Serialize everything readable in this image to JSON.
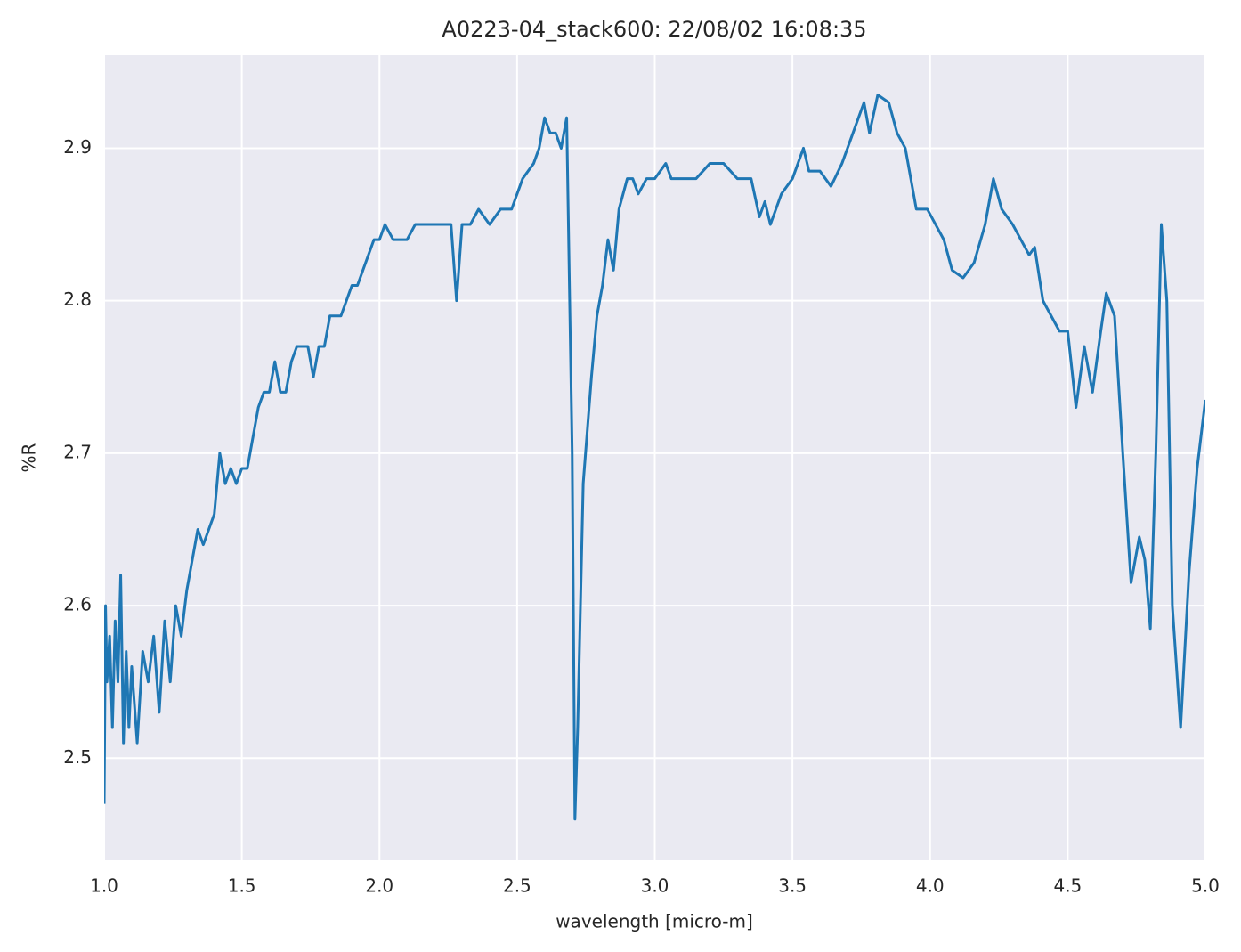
{
  "chart_data": {
    "type": "line",
    "title": "A0223-04_stack600:  22/08/02 16:08:35",
    "x_label": "wavelength [micro-m]",
    "y_label": "%R",
    "color": "#1f77b4",
    "grid": true,
    "xlim": [
      1.0,
      5.0
    ],
    "ylim": [
      2.433,
      2.961
    ],
    "xticks": [
      {
        "value": 1.0,
        "label": "1.0"
      },
      {
        "value": 1.5,
        "label": "1.5"
      },
      {
        "value": 2.0,
        "label": "2.0"
      },
      {
        "value": 2.5,
        "label": "2.5"
      },
      {
        "value": 3.0,
        "label": "3.0"
      },
      {
        "value": 3.5,
        "label": "3.5"
      },
      {
        "value": 4.0,
        "label": "4.0"
      },
      {
        "value": 4.5,
        "label": "4.5"
      },
      {
        "value": 5.0,
        "label": "5.0"
      }
    ],
    "yticks": [
      2.5,
      2.6,
      2.7,
      2.8,
      2.9
    ],
    "x": [
      1.0,
      1.005,
      1.01,
      1.02,
      1.03,
      1.04,
      1.05,
      1.06,
      1.07,
      1.08,
      1.09,
      1.1,
      1.12,
      1.14,
      1.16,
      1.18,
      1.2,
      1.22,
      1.24,
      1.26,
      1.28,
      1.3,
      1.32,
      1.34,
      1.36,
      1.38,
      1.4,
      1.42,
      1.44,
      1.46,
      1.48,
      1.5,
      1.52,
      1.54,
      1.56,
      1.58,
      1.6,
      1.62,
      1.64,
      1.66,
      1.68,
      1.7,
      1.72,
      1.74,
      1.76,
      1.78,
      1.8,
      1.82,
      1.84,
      1.86,
      1.88,
      1.9,
      1.92,
      1.94,
      1.96,
      1.98,
      2.0,
      2.02,
      2.05,
      2.08,
      2.1,
      2.13,
      2.16,
      2.2,
      2.24,
      2.26,
      2.28,
      2.3,
      2.33,
      2.36,
      2.4,
      2.44,
      2.48,
      2.52,
      2.56,
      2.58,
      2.6,
      2.62,
      2.64,
      2.66,
      2.68,
      2.7,
      2.71,
      2.72,
      2.74,
      2.77,
      2.79,
      2.81,
      2.83,
      2.85,
      2.87,
      2.9,
      2.92,
      2.94,
      2.97,
      3.0,
      3.04,
      3.06,
      3.1,
      3.15,
      3.2,
      3.25,
      3.3,
      3.35,
      3.38,
      3.4,
      3.42,
      3.46,
      3.5,
      3.54,
      3.56,
      3.6,
      3.64,
      3.68,
      3.72,
      3.76,
      3.78,
      3.81,
      3.85,
      3.88,
      3.91,
      3.95,
      3.99,
      4.02,
      4.05,
      4.08,
      4.12,
      4.16,
      4.2,
      4.23,
      4.26,
      4.3,
      4.33,
      4.36,
      4.38,
      4.41,
      4.44,
      4.47,
      4.5,
      4.53,
      4.56,
      4.59,
      4.62,
      4.64,
      4.67,
      4.7,
      4.73,
      4.76,
      4.78,
      4.8,
      4.82,
      4.84,
      4.86,
      4.88,
      4.91,
      4.94,
      4.97,
      5.0
    ],
    "values": [
      2.47,
      2.6,
      2.55,
      2.58,
      2.52,
      2.59,
      2.55,
      2.62,
      2.51,
      2.57,
      2.52,
      2.56,
      2.51,
      2.57,
      2.55,
      2.58,
      2.53,
      2.59,
      2.55,
      2.6,
      2.58,
      2.61,
      2.63,
      2.65,
      2.64,
      2.65,
      2.66,
      2.7,
      2.68,
      2.69,
      2.68,
      2.69,
      2.69,
      2.71,
      2.73,
      2.74,
      2.74,
      2.76,
      2.74,
      2.74,
      2.76,
      2.77,
      2.77,
      2.77,
      2.75,
      2.77,
      2.77,
      2.79,
      2.79,
      2.79,
      2.8,
      2.81,
      2.81,
      2.82,
      2.83,
      2.84,
      2.84,
      2.85,
      2.84,
      2.84,
      2.84,
      2.85,
      2.85,
      2.85,
      2.85,
      2.85,
      2.8,
      2.85,
      2.85,
      2.86,
      2.85,
      2.86,
      2.86,
      2.88,
      2.89,
      2.9,
      2.92,
      2.91,
      2.91,
      2.9,
      2.92,
      2.7,
      2.46,
      2.52,
      2.68,
      2.75,
      2.79,
      2.81,
      2.84,
      2.82,
      2.86,
      2.88,
      2.88,
      2.87,
      2.88,
      2.88,
      2.89,
      2.88,
      2.88,
      2.88,
      2.89,
      2.89,
      2.88,
      2.88,
      2.855,
      2.865,
      2.85,
      2.87,
      2.88,
      2.9,
      2.885,
      2.885,
      2.875,
      2.89,
      2.91,
      2.93,
      2.91,
      2.935,
      2.93,
      2.91,
      2.9,
      2.86,
      2.86,
      2.85,
      2.84,
      2.82,
      2.815,
      2.825,
      2.85,
      2.88,
      2.86,
      2.85,
      2.84,
      2.83,
      2.835,
      2.8,
      2.79,
      2.78,
      2.78,
      2.73,
      2.77,
      2.74,
      2.78,
      2.805,
      2.79,
      2.7,
      2.615,
      2.645,
      2.63,
      2.585,
      2.7,
      2.85,
      2.8,
      2.6,
      2.52,
      2.62,
      2.69,
      2.735
    ]
  }
}
